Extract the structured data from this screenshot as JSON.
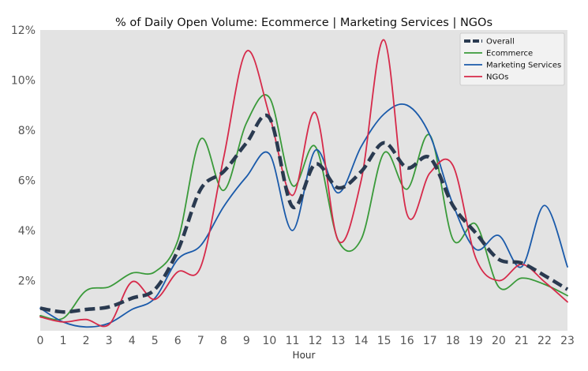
{
  "chart_data": {
    "type": "line",
    "title": "% of Daily Open Volume: Ecommerce | Marketing Services | NGOs",
    "xlabel": "Hour",
    "ylabel": "",
    "x": [
      0,
      1,
      2,
      3,
      4,
      5,
      6,
      7,
      8,
      9,
      10,
      11,
      12,
      13,
      14,
      15,
      16,
      17,
      18,
      19,
      20,
      21,
      22,
      23
    ],
    "xlim": [
      0,
      23
    ],
    "ylim": [
      0,
      12
    ],
    "yticks": [
      2,
      4,
      6,
      8,
      10,
      12
    ],
    "ytick_labels": [
      "2%",
      "4%",
      "6%",
      "8%",
      "10%",
      "12%"
    ],
    "xtick_labels": [
      "0",
      "1",
      "2",
      "3",
      "4",
      "5",
      "6",
      "7",
      "8",
      "9",
      "10",
      "11",
      "12",
      "13",
      "14",
      "15",
      "16",
      "17",
      "18",
      "19",
      "20",
      "21",
      "22",
      "23"
    ],
    "grid": false,
    "legend_position": "top-right",
    "background": "#e3e3e3",
    "series": [
      {
        "name": "Overall",
        "color": "#2a3a50",
        "style": "dashed",
        "values": [
          0.9,
          0.75,
          0.85,
          0.95,
          1.3,
          1.65,
          3.2,
          5.65,
          6.35,
          7.5,
          8.5,
          4.95,
          6.65,
          5.7,
          6.35,
          7.5,
          6.5,
          6.9,
          5.0,
          3.9,
          2.85,
          2.7,
          2.2,
          1.65
        ]
      },
      {
        "name": "Ecommerce",
        "color": "#3a9a3a",
        "style": "solid",
        "values": [
          0.6,
          0.5,
          1.6,
          1.75,
          2.3,
          2.35,
          3.6,
          7.65,
          5.6,
          8.3,
          9.3,
          5.8,
          7.35,
          3.6,
          3.65,
          7.1,
          5.65,
          7.8,
          3.65,
          4.25,
          1.75,
          2.1,
          1.85,
          1.4
        ]
      },
      {
        "name": "Marketing Services",
        "color": "#1a5aaa",
        "style": "solid",
        "values": [
          0.9,
          0.35,
          0.15,
          0.3,
          0.85,
          1.3,
          2.85,
          3.4,
          4.95,
          6.15,
          7.05,
          4.0,
          7.2,
          5.5,
          7.35,
          8.65,
          9.0,
          7.8,
          5.05,
          3.25,
          3.8,
          2.55,
          5.0,
          2.55
        ]
      },
      {
        "name": "NGOs",
        "color": "#d62a4a",
        "style": "solid",
        "values": [
          0.55,
          0.35,
          0.45,
          0.25,
          1.95,
          1.25,
          2.35,
          2.55,
          6.9,
          11.15,
          8.6,
          5.4,
          8.7,
          3.6,
          6.0,
          11.6,
          4.65,
          6.3,
          6.6,
          2.9,
          2.0,
          2.65,
          1.95,
          1.15
        ]
      }
    ]
  }
}
